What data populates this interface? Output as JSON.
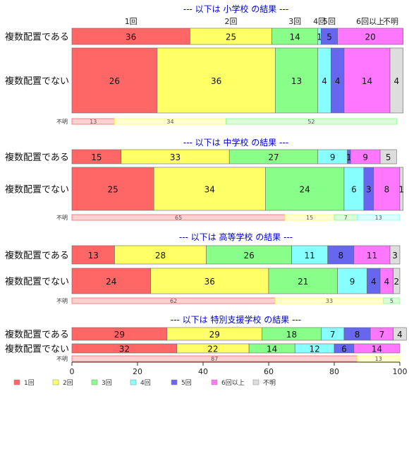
{
  "chart_data": {
    "type": "bar",
    "orientation": "horizontal",
    "stacked": true,
    "xlim": [
      0,
      100
    ],
    "x_ticks": [
      0,
      20,
      40,
      60,
      80,
      100
    ],
    "legend_position": "bottom",
    "colors": [
      "#ff6666",
      "#ffff66",
      "#88ff88",
      "#88ffff",
      "#6666ee",
      "#ff77ff",
      "#dddddd"
    ],
    "categories": [
      "1回",
      "2回",
      "3回",
      "4回",
      "5回",
      "6回以上",
      "不明"
    ],
    "top_category_labels": [
      "1回",
      "2回",
      "3回",
      "4回",
      "5回",
      "6回以上",
      "不明"
    ],
    "groups": [
      {
        "title": "--- 以下は 小学校 の結果 ---",
        "rows": [
          {
            "label": "複数配置である",
            "values": [
              36,
              25,
              14,
              1,
              5,
              20,
              0
            ]
          },
          {
            "label": "複数配置でない",
            "values": [
              26,
              36,
              13,
              4,
              4,
              14,
              4
            ]
          }
        ],
        "unknown": {
          "label": "不明",
          "values": [
            13,
            34,
            52
          ]
        }
      },
      {
        "title": "--- 以下は 中学校 の結果 ---",
        "rows": [
          {
            "label": "複数配置である",
            "values": [
              15,
              33,
              27,
              9,
              1,
              9,
              5
            ]
          },
          {
            "label": "複数配置でない",
            "values": [
              25,
              34,
              24,
              6,
              3,
              8,
              1
            ]
          }
        ],
        "unknown": {
          "label": "不明",
          "values": [
            65,
            15,
            7,
            13
          ]
        }
      },
      {
        "title": "--- 以下は 高等学校 の結果 ---",
        "rows": [
          {
            "label": "複数配置である",
            "values": [
              13,
              28,
              26,
              11,
              8,
              11,
              3
            ]
          },
          {
            "label": "複数配置でない",
            "values": [
              24,
              36,
              21,
              9,
              4,
              4,
              2
            ]
          }
        ],
        "unknown": {
          "label": "不明",
          "values": [
            62,
            33,
            5
          ]
        }
      },
      {
        "title": "--- 以下は 特別支援学校 の結果 ---",
        "rows": [
          {
            "label": "複数配置である",
            "values": [
              29,
              29,
              18,
              7,
              8,
              7,
              4
            ]
          },
          {
            "label": "複数配置でない",
            "values": [
              32,
              22,
              14,
              12,
              6,
              14,
              0
            ]
          }
        ],
        "unknown": {
          "label": "不明",
          "values": [
            87,
            13
          ]
        }
      }
    ]
  }
}
